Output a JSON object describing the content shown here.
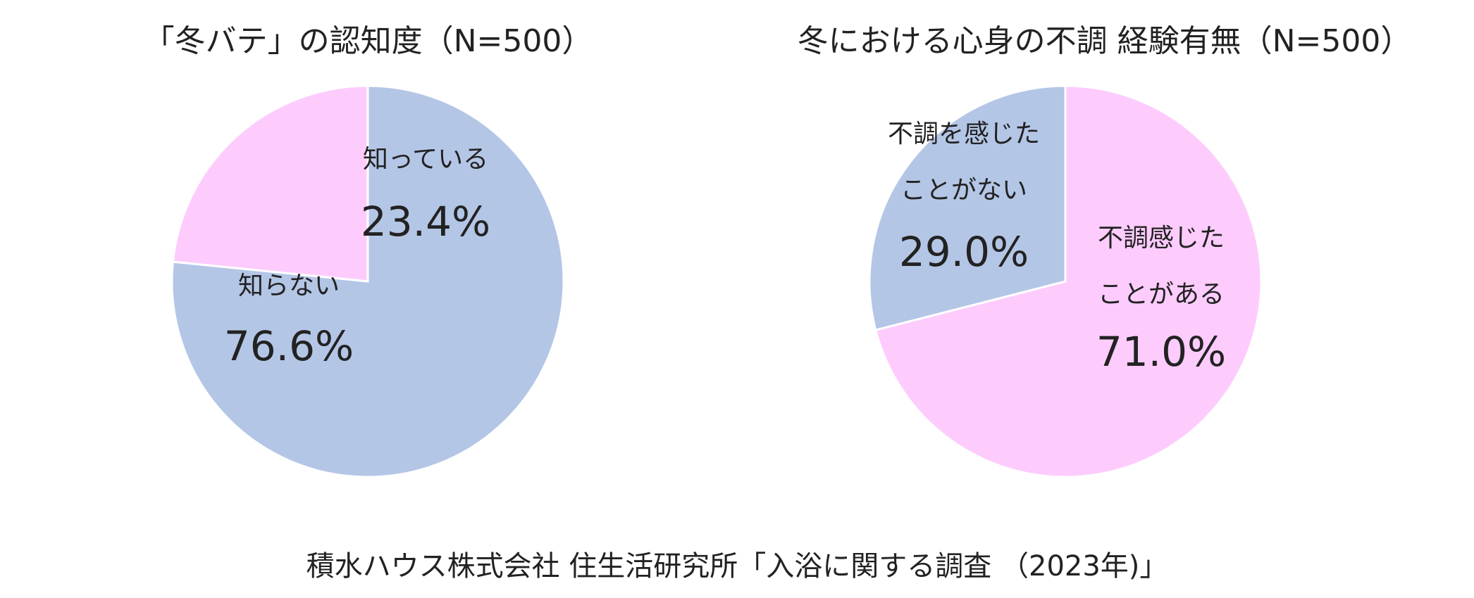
{
  "chart_data": [
    {
      "type": "pie",
      "title": "「冬バテ」の認知度（N=500）",
      "slices": [
        {
          "label": "知っている",
          "value": 23.4,
          "value_label": "23.4%",
          "color": "#fdccfd"
        },
        {
          "label": "知らない",
          "value": 76.6,
          "value_label": "76.6%",
          "color": "#b4c6e6"
        }
      ]
    },
    {
      "type": "pie",
      "title": "冬における心身の不調 経験有無（N=500）",
      "slices": [
        {
          "label": "不調感じた\nことがある",
          "value": 71.0,
          "value_label": "71.0%",
          "color": "#fdccfd"
        },
        {
          "label": "不調を感じた\nことがない",
          "value": 29.0,
          "value_label": "29.0%",
          "color": "#b4c6e6"
        }
      ]
    }
  ],
  "source": "積水ハウス株式会社 住生活研究所「入浴に関する調査 （2023年)」"
}
